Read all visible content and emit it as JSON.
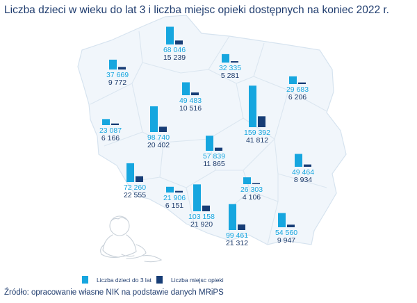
{
  "title": "Liczba dzieci w wieku do lat 3 i liczba miejsc opieki dostępnych na koniec 2022 r.",
  "source": "Źródło: opracowanie własne NIK na podstawie danych MRiPS",
  "colors": {
    "children": "#16a6df",
    "places": "#173d76",
    "map_fill": "#f1f6fb",
    "text": "#1f3c6e"
  },
  "legend": {
    "children_label": "Liczba dzieci do 3 lat",
    "places_label": "Liczba miejsc opieki"
  },
  "chart_data": {
    "type": "bar",
    "series": [
      {
        "name": "Liczba dzieci do 3 lat"
      },
      {
        "name": "Liczba miejsc opieki"
      }
    ],
    "categories": [],
    "regions": [
      {
        "children": 68046,
        "children_label": "68 046",
        "places": 15239,
        "places_label": "15 239"
      },
      {
        "children": 37669,
        "children_label": "37 669",
        "places": 9772,
        "places_label": "9 772"
      },
      {
        "children": 32335,
        "children_label": "32 335",
        "places": 5281,
        "places_label": "5 281"
      },
      {
        "children": 29683,
        "children_label": "29 683",
        "places": 6206,
        "places_label": "6 206"
      },
      {
        "children": 49483,
        "children_label": "49 483",
        "places": 10516,
        "places_label": "10 516"
      },
      {
        "children": 23087,
        "children_label": "23 087",
        "places": 6166,
        "places_label": "6 166"
      },
      {
        "children": 98740,
        "children_label": "98 740",
        "places": 20402,
        "places_label": "20 402"
      },
      {
        "children": 159392,
        "children_label": "159 392",
        "places": 41812,
        "places_label": "41 812"
      },
      {
        "children": 57839,
        "children_label": "57 839",
        "places": 11865,
        "places_label": "11 865"
      },
      {
        "children": 49464,
        "children_label": "49 464",
        "places": 8934,
        "places_label": "8 934"
      },
      {
        "children": 72260,
        "children_label": "72 260",
        "places": 22555,
        "places_label": "22 555"
      },
      {
        "children": 26303,
        "children_label": "26 303",
        "places": 4106,
        "places_label": "4 106"
      },
      {
        "children": 21906,
        "children_label": "21 906",
        "places": 6151,
        "places_label": "6 151"
      },
      {
        "children": 103158,
        "children_label": "103 158",
        "places": 21920,
        "places_label": "21 920"
      },
      {
        "children": 99461,
        "children_label": "99 461",
        "places": 21312,
        "places_label": "21 312"
      },
      {
        "children": 54560,
        "children_label": "54 560",
        "places": 9947,
        "places_label": "9 947"
      }
    ]
  }
}
